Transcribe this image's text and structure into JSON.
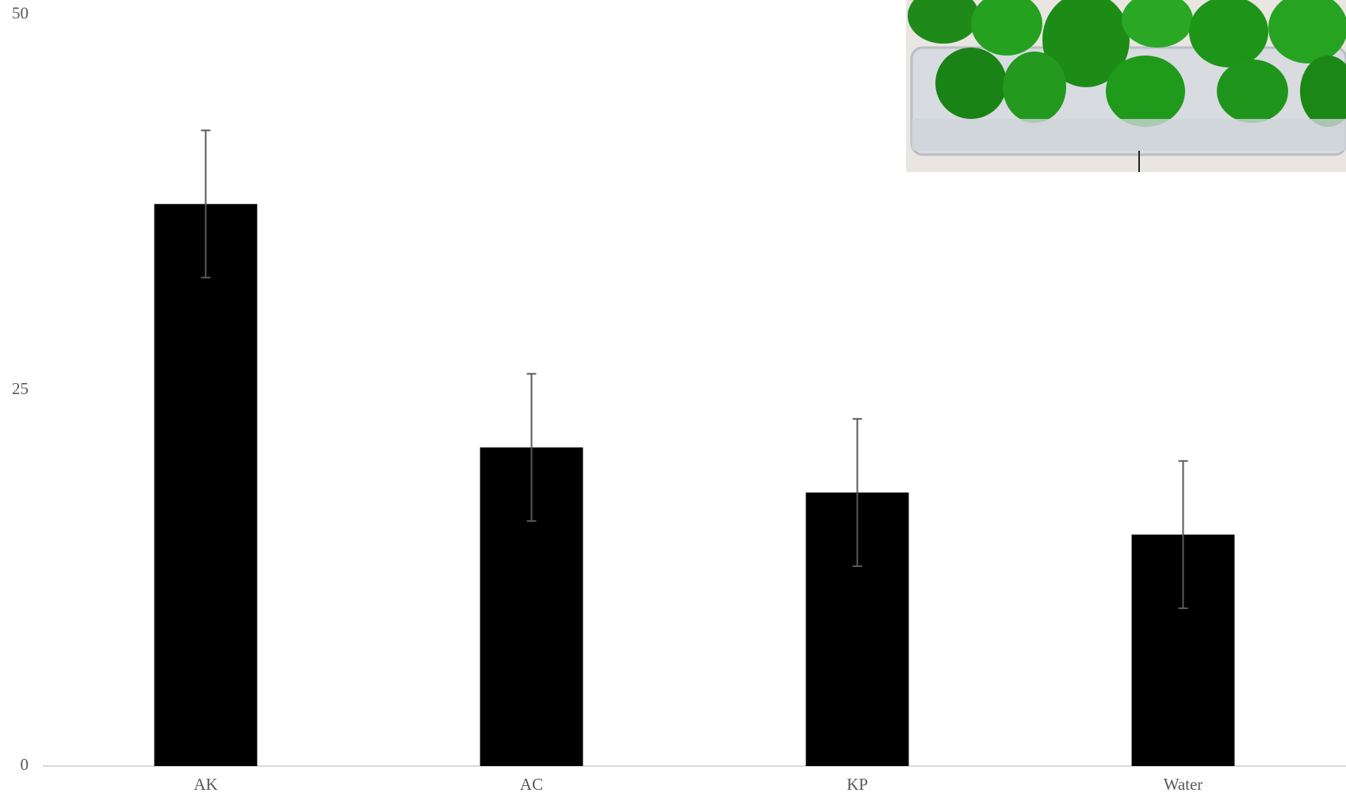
{
  "chart_data": {
    "type": "bar",
    "categories": [
      "AK",
      "AC",
      "KP",
      "Water"
    ],
    "values": [
      37.4,
      21.2,
      18.2,
      15.4
    ],
    "errors": [
      4.9,
      4.9,
      4.9,
      4.9
    ],
    "color": "#000000",
    "error_color": "#595959",
    "ylim": [
      0,
      50
    ],
    "yticks": [
      0,
      25,
      50
    ],
    "grid": false
  }
}
